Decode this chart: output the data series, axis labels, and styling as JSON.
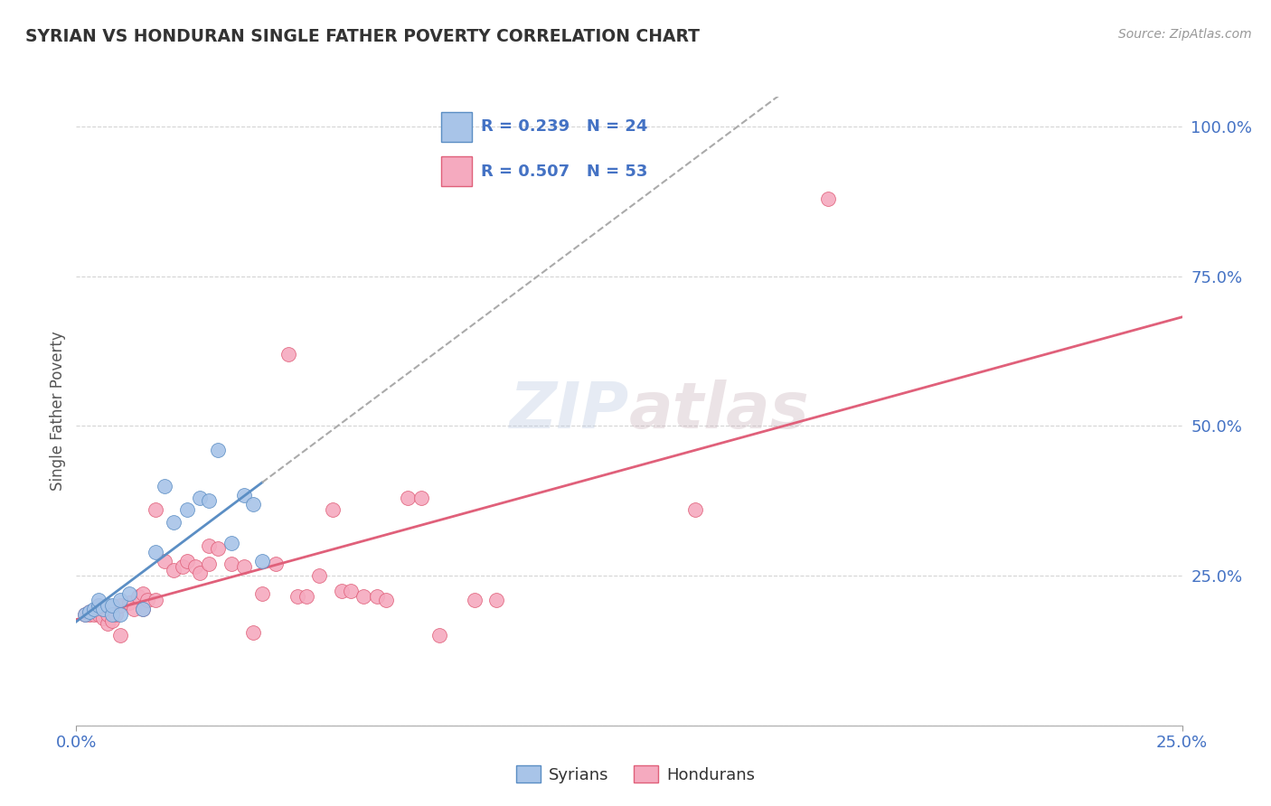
{
  "title": "SYRIAN VS HONDURAN SINGLE FATHER POVERTY CORRELATION CHART",
  "source": "Source: ZipAtlas.com",
  "ylabel": "Single Father Poverty",
  "xlim": [
    0.0,
    0.25
  ],
  "ylim": [
    0.0,
    1.05
  ],
  "syrian_R": 0.239,
  "syrian_N": 24,
  "honduran_R": 0.507,
  "honduran_N": 53,
  "syrian_color": "#a8c4e8",
  "honduran_color": "#f5aabf",
  "syrian_line_color": "#5b8ec4",
  "honduran_line_color": "#e0607a",
  "dashed_line_color": "#aaaaaa",
  "syrian_scatter": [
    [
      0.002,
      0.185
    ],
    [
      0.003,
      0.19
    ],
    [
      0.004,
      0.195
    ],
    [
      0.005,
      0.2
    ],
    [
      0.005,
      0.21
    ],
    [
      0.006,
      0.195
    ],
    [
      0.007,
      0.2
    ],
    [
      0.008,
      0.185
    ],
    [
      0.008,
      0.2
    ],
    [
      0.01,
      0.185
    ],
    [
      0.01,
      0.21
    ],
    [
      0.012,
      0.22
    ],
    [
      0.015,
      0.195
    ],
    [
      0.018,
      0.29
    ],
    [
      0.02,
      0.4
    ],
    [
      0.022,
      0.34
    ],
    [
      0.025,
      0.36
    ],
    [
      0.028,
      0.38
    ],
    [
      0.03,
      0.375
    ],
    [
      0.032,
      0.46
    ],
    [
      0.035,
      0.305
    ],
    [
      0.038,
      0.385
    ],
    [
      0.04,
      0.37
    ],
    [
      0.042,
      0.275
    ]
  ],
  "honduran_scatter": [
    [
      0.002,
      0.185
    ],
    [
      0.003,
      0.185
    ],
    [
      0.003,
      0.19
    ],
    [
      0.004,
      0.185
    ],
    [
      0.005,
      0.185
    ],
    [
      0.005,
      0.2
    ],
    [
      0.006,
      0.18
    ],
    [
      0.006,
      0.195
    ],
    [
      0.007,
      0.17
    ],
    [
      0.007,
      0.185
    ],
    [
      0.008,
      0.175
    ],
    [
      0.009,
      0.185
    ],
    [
      0.01,
      0.2
    ],
    [
      0.01,
      0.15
    ],
    [
      0.012,
      0.205
    ],
    [
      0.013,
      0.195
    ],
    [
      0.014,
      0.215
    ],
    [
      0.015,
      0.22
    ],
    [
      0.015,
      0.195
    ],
    [
      0.016,
      0.21
    ],
    [
      0.018,
      0.21
    ],
    [
      0.018,
      0.36
    ],
    [
      0.02,
      0.275
    ],
    [
      0.022,
      0.26
    ],
    [
      0.024,
      0.265
    ],
    [
      0.025,
      0.275
    ],
    [
      0.027,
      0.265
    ],
    [
      0.028,
      0.255
    ],
    [
      0.03,
      0.27
    ],
    [
      0.03,
      0.3
    ],
    [
      0.032,
      0.295
    ],
    [
      0.035,
      0.27
    ],
    [
      0.038,
      0.265
    ],
    [
      0.04,
      0.155
    ],
    [
      0.042,
      0.22
    ],
    [
      0.045,
      0.27
    ],
    [
      0.048,
      0.62
    ],
    [
      0.05,
      0.215
    ],
    [
      0.052,
      0.215
    ],
    [
      0.055,
      0.25
    ],
    [
      0.058,
      0.36
    ],
    [
      0.06,
      0.225
    ],
    [
      0.062,
      0.225
    ],
    [
      0.065,
      0.215
    ],
    [
      0.068,
      0.215
    ],
    [
      0.07,
      0.21
    ],
    [
      0.075,
      0.38
    ],
    [
      0.078,
      0.38
    ],
    [
      0.082,
      0.15
    ],
    [
      0.09,
      0.21
    ],
    [
      0.095,
      0.21
    ],
    [
      0.14,
      0.36
    ],
    [
      0.17,
      0.88
    ]
  ],
  "watermark_zip": "ZIP",
  "watermark_atlas": "atlas",
  "background_color": "#ffffff",
  "grid_color": "#d0d0d0"
}
